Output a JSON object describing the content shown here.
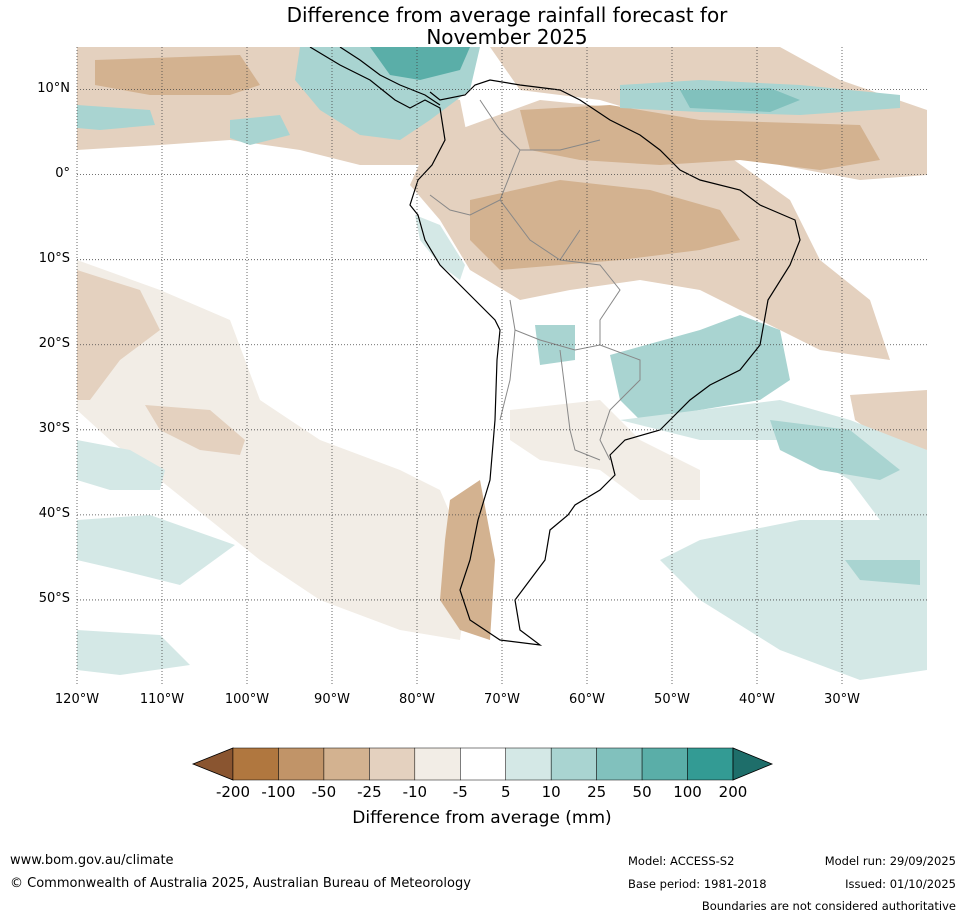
{
  "title": {
    "line1": "Difference from average rainfall forecast for",
    "line2": "November 2025"
  },
  "map": {
    "lat_labels": [
      "10°N",
      "0°",
      "10°S",
      "20°S",
      "30°S",
      "40°S",
      "50°S"
    ],
    "lat_values": [
      10,
      0,
      -10,
      -20,
      -30,
      -40,
      -50
    ],
    "lon_labels": [
      "120°W",
      "110°W",
      "100°W",
      "90°W",
      "80°W",
      "70°W",
      "60°W",
      "50°W",
      "40°W",
      "30°W"
    ],
    "lon_values": [
      -120,
      -110,
      -100,
      -90,
      -80,
      -70,
      -60,
      -50,
      -40,
      -30
    ],
    "extent": {
      "lon_min": -120,
      "lon_max": -20,
      "lat_min": -60,
      "lat_max": 15
    }
  },
  "colorbar": {
    "ticks": [
      "-200",
      "-100",
      "-50",
      "-25",
      "-10",
      "-5",
      "5",
      "10",
      "25",
      "50",
      "100",
      "200"
    ],
    "colors": [
      "#8a5530",
      "#b0773f",
      "#c19468",
      "#d3b290",
      "#e4d1bf",
      "#f2ede6",
      "#ffffff",
      "#d4e8e6",
      "#a9d4d1",
      "#81c1bd",
      "#5aaea8",
      "#339b94",
      "#1e6e6a"
    ],
    "label": "Difference from average (mm)"
  },
  "footer": {
    "website": "www.bom.gov.au/climate",
    "copyright": "© Commonwealth of Australia 2025, Australian Bureau of Meteorology",
    "model": "Model: ACCESS-S2",
    "base_period": "Base period: 1981-2018",
    "model_run": "Model run: 29/09/2025",
    "issued": "Issued: 01/10/2025",
    "boundaries_note": "Boundaries are not considered authoritative"
  }
}
